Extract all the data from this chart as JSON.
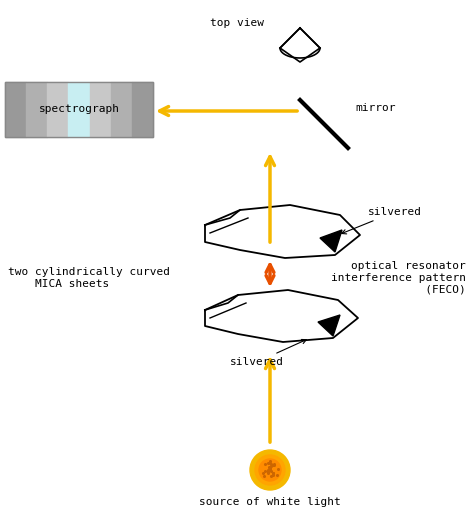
{
  "bg_color": "#ffffff",
  "arrow_yellow": "#F5B800",
  "arrow_orange": "#E85000",
  "spectrograph_colors": [
    "#999999",
    "#b0b0b0",
    "#c8c8c8",
    "#c8eef2",
    "#c8c8c8",
    "#b0b0b0",
    "#999999"
  ],
  "text_top_view": "top view",
  "text_mirror": "mirror",
  "text_spectrograph": "spectrograph",
  "text_silvered_top": "silvered",
  "text_silvered_bot": "silvered",
  "text_mica": "two cylindrically curved\n    MICA sheets",
  "text_optical": "optical resonator\ninterference pattern\n       (FECO)",
  "text_source": "source of white light",
  "figsize": [
    4.74,
    5.16
  ],
  "dpi": 100
}
